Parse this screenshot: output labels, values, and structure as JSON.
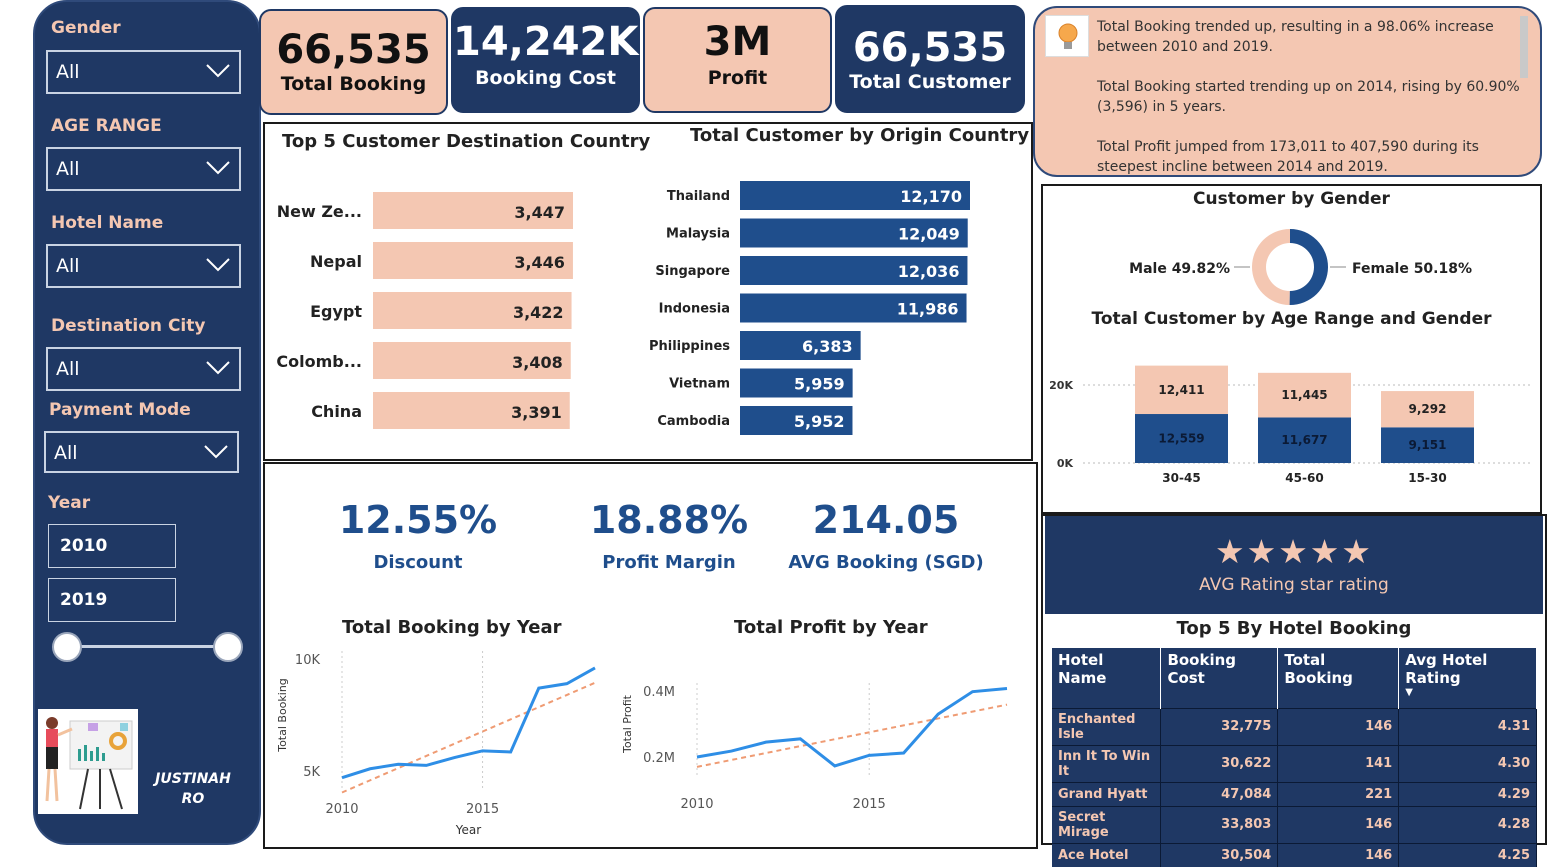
{
  "filters": {
    "gender": {
      "label": "Gender",
      "value": "All"
    },
    "age_range": {
      "label": "AGE RANGE",
      "value": "All"
    },
    "hotel_name": {
      "label": "Hotel Name",
      "value": "All"
    },
    "destination_city": {
      "label": "Destination City",
      "value": "All"
    },
    "payment_mode": {
      "label": "Payment Mode",
      "value": "All"
    },
    "year": {
      "label": "Year",
      "from": "2010",
      "to": "2019"
    }
  },
  "author": {
    "line1": "JUSTINAH",
    "line2": "RO"
  },
  "kpis": {
    "total_booking": {
      "value": "66,535",
      "label": "Total Booking"
    },
    "booking_cost": {
      "value": "14,242K",
      "label": "Booking Cost"
    },
    "profit": {
      "value": "3M",
      "label": "Profit"
    },
    "total_customer": {
      "value": "66,535",
      "label": "Total Customer"
    }
  },
  "narrative": [
    "Total Booking trended up, resulting in a 98.06% increase between 2010 and 2019.",
    "Total Booking started trending up on 2014, rising by 60.90% (3,596) in 5 years.",
    "Total Profit jumped from 173,011 to 407,590 during its steepest incline between 2014 and 2019."
  ],
  "dest_chart": {
    "title": "Top 5 Customer Destination Country",
    "categories": [
      "New Ze...",
      "Nepal",
      "Egypt",
      "Colomb...",
      "China"
    ],
    "values": [
      3447,
      3446,
      3422,
      3408,
      3391
    ],
    "labels": [
      "3,447",
      "3,446",
      "3,422",
      "3,408",
      "3,391"
    ],
    "color": "#f4c7b2"
  },
  "origin_chart": {
    "title": "Total Customer by Origin Country",
    "categories": [
      "Thailand",
      "Malaysia",
      "Singapore",
      "Indonesia",
      "Philippines",
      "Vietnam",
      "Cambodia"
    ],
    "values": [
      12170,
      12049,
      12036,
      11986,
      6383,
      5959,
      5952
    ],
    "labels": [
      "12,170",
      "12,049",
      "12,036",
      "11,986",
      "6,383",
      "5,959",
      "5,952"
    ],
    "color": "#1f4e8c"
  },
  "gender_chart": {
    "title": "Customer by Gender",
    "male_label": "Male 49.82%",
    "female_label": "Female 50.18%",
    "male": 49.82,
    "female": 50.18,
    "male_color": "#f4c7b2",
    "female_color": "#1f4e8c"
  },
  "age_chart": {
    "title": "Total Customer by Age Range and Gender",
    "categories": [
      "30-45",
      "45-60",
      "15-30"
    ],
    "series": [
      {
        "values": [
          12559,
          11677,
          9151
        ],
        "labels": [
          "12,559",
          "11,677",
          "9,151"
        ],
        "color": "#1f4e8c"
      },
      {
        "values": [
          12411,
          11445,
          9292
        ],
        "labels": [
          "12,411",
          "11,445",
          "9,292"
        ],
        "color": "#f4c7b2"
      }
    ],
    "yticks": [
      "20K",
      "0K"
    ]
  },
  "stats": {
    "discount": {
      "value": "12.55%",
      "label": "Discount"
    },
    "profit_margin": {
      "value": "18.88%",
      "label": "Profit Margin"
    },
    "avg_booking": {
      "value": "214.05",
      "label": "AVG Booking (SGD)"
    }
  },
  "chart_data": [
    {
      "type": "line",
      "title": "Total Booking by Year",
      "xlabel": "Year",
      "ylabel": "Total Booking",
      "x": [
        2010,
        2011,
        2012,
        2013,
        2014,
        2015,
        2016,
        2017,
        2018,
        2019
      ],
      "values": [
        4700,
        5100,
        5300,
        5250,
        5600,
        5900,
        5850,
        8700,
        8900,
        9600
      ],
      "yticks": [
        "10K",
        "5K"
      ],
      "xticks": [
        "2010",
        "2015"
      ],
      "trend": true
    },
    {
      "type": "line",
      "title": "Total Profit by Year",
      "xlabel": "",
      "ylabel": "Total Profit",
      "x": [
        2010,
        2011,
        2012,
        2013,
        2014,
        2015,
        2016,
        2017,
        2018,
        2019
      ],
      "values": [
        200000,
        218000,
        245000,
        255000,
        173011,
        205000,
        212000,
        330000,
        398000,
        407590
      ],
      "yticks": [
        "0.4M",
        "0.2M"
      ],
      "xticks": [
        "2010",
        "2015"
      ],
      "trend": true
    }
  ],
  "rating": {
    "stars": "★★★★★",
    "label": "AVG Rating star rating"
  },
  "hotel_table": {
    "title": "Top 5 By Hotel Booking",
    "columns": [
      "Hotel Name",
      "Booking Cost",
      "Total Booking",
      "Avg Hotel Rating"
    ],
    "rows": [
      [
        "Enchanted Isle",
        "32,775",
        "146",
        "4.31"
      ],
      [
        "Inn It To Win It",
        "30,622",
        "141",
        "4.30"
      ],
      [
        "Grand Hyatt",
        "47,084",
        "221",
        "4.29"
      ],
      [
        "Secret Mirage",
        "33,803",
        "146",
        "4.28"
      ],
      [
        "Ace Hotel",
        "30,504",
        "146",
        "4.25"
      ]
    ]
  }
}
